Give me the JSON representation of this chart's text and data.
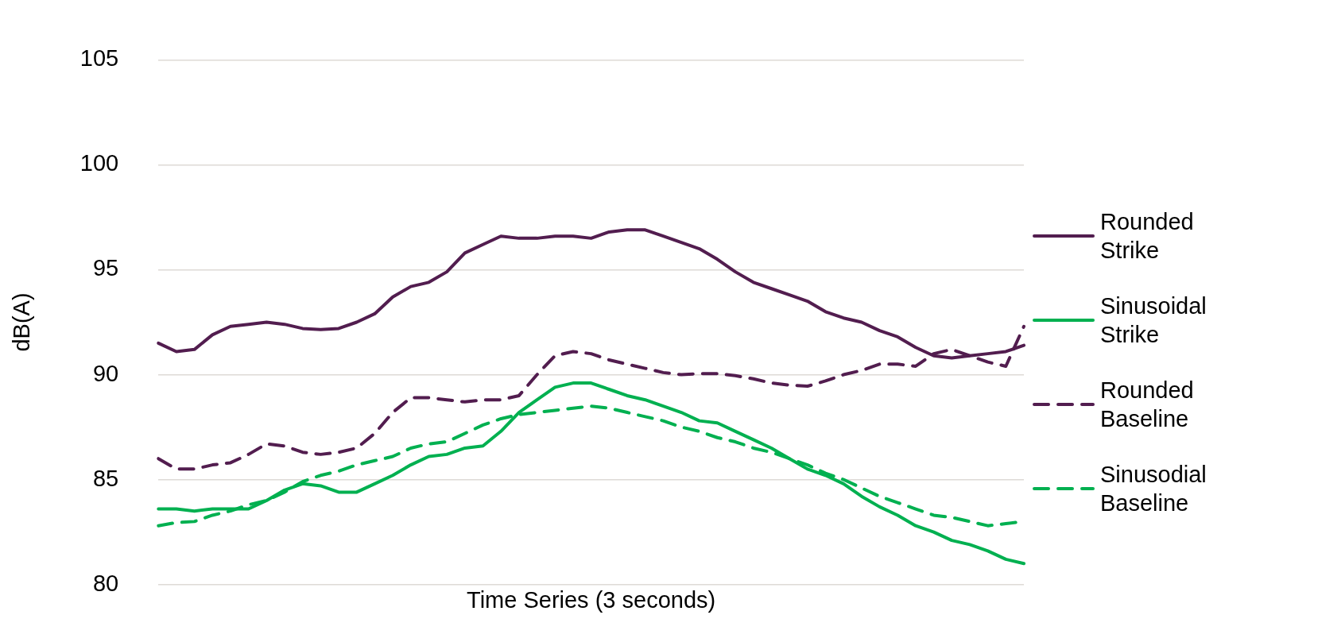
{
  "chart_data": {
    "type": "line",
    "xlabel": "Time Series (3 seconds)",
    "ylabel": "dB(A)",
    "categories": [
      null,
      null,
      null,
      null,
      null,
      null,
      null,
      null,
      null,
      null,
      null,
      null,
      null,
      null,
      null,
      null,
      null,
      null,
      null,
      null,
      null,
      null,
      null,
      null,
      null,
      null,
      null,
      null,
      null,
      null,
      null,
      null,
      null,
      null,
      null,
      null,
      null,
      null,
      null,
      null,
      null,
      null,
      null,
      null,
      null,
      null,
      null,
      null,
      null
    ],
    "ylim": [
      80,
      105
    ],
    "yticks": [
      80,
      85,
      90,
      95,
      100,
      105
    ],
    "grid": "y",
    "legend": "right",
    "tick_labels": "y",
    "marker": "none",
    "series": [
      {
        "name": "Rounded Strike",
        "color": "#521d4f",
        "line_style": "solid",
        "values": [
          91.5,
          91.1,
          91.2,
          91.9,
          92.3,
          92.4,
          92.5,
          92.4,
          92.2,
          92.15,
          92.2,
          92.5,
          92.9,
          93.7,
          94.2,
          94.4,
          94.9,
          95.8,
          96.2,
          96.6,
          96.5,
          96.5,
          96.6,
          96.6,
          96.5,
          96.8,
          96.9,
          96.9,
          96.6,
          96.3,
          96.0,
          95.5,
          94.9,
          94.4,
          94.1,
          93.8,
          93.5,
          93.0,
          92.7,
          92.5,
          92.1,
          91.8,
          91.3,
          90.9,
          90.8,
          90.9,
          91.0,
          91.1,
          91.4
        ]
      },
      {
        "name": "Sinusoidal Strike",
        "color": "#00b050",
        "line_style": "solid",
        "values": [
          83.6,
          83.6,
          83.5,
          83.6,
          83.6,
          83.6,
          84.0,
          84.5,
          84.8,
          84.7,
          84.4,
          84.4,
          84.8,
          85.2,
          85.7,
          86.1,
          86.2,
          86.5,
          86.6,
          87.3,
          88.2,
          88.8,
          89.4,
          89.6,
          89.6,
          89.3,
          89.0,
          88.8,
          88.5,
          88.2,
          87.8,
          87.7,
          87.3,
          86.9,
          86.5,
          86.0,
          85.5,
          85.2,
          84.8,
          84.2,
          83.7,
          83.3,
          82.8,
          82.5,
          82.1,
          81.9,
          81.6,
          81.2,
          81.0
        ]
      },
      {
        "name": "Rounded Baseline",
        "color": "#521d4f",
        "line_style": "dashed",
        "values": [
          86.0,
          85.5,
          85.5,
          85.7,
          85.8,
          86.2,
          86.7,
          86.6,
          86.3,
          86.2,
          86.3,
          86.5,
          87.2,
          88.2,
          88.9,
          88.9,
          88.8,
          88.7,
          88.8,
          88.8,
          89.0,
          90.0,
          90.9,
          91.1,
          91.0,
          90.7,
          90.5,
          90.3,
          90.1,
          90.0,
          90.05,
          90.05,
          89.95,
          89.8,
          89.6,
          89.5,
          89.45,
          89.7,
          90.0,
          90.2,
          90.5,
          90.5,
          90.4,
          91.0,
          91.2,
          90.9,
          90.6,
          90.4,
          92.3
        ]
      },
      {
        "name": "Sinusodial Baseline",
        "color": "#00b050",
        "line_style": "dashed",
        "values": [
          82.8,
          82.95,
          83.0,
          83.3,
          83.5,
          83.8,
          84.0,
          84.4,
          84.9,
          85.2,
          85.4,
          85.7,
          85.9,
          86.1,
          86.5,
          86.7,
          86.8,
          87.2,
          87.6,
          87.9,
          88.1,
          88.2,
          88.3,
          88.4,
          88.5,
          88.4,
          88.2,
          88.0,
          87.8,
          87.5,
          87.3,
          87.0,
          86.8,
          86.5,
          86.3,
          86.0,
          85.7,
          85.3,
          85.0,
          84.6,
          84.2,
          83.9,
          83.6,
          83.3,
          83.2,
          83.0,
          82.8,
          82.9,
          83.0
        ]
      }
    ]
  }
}
